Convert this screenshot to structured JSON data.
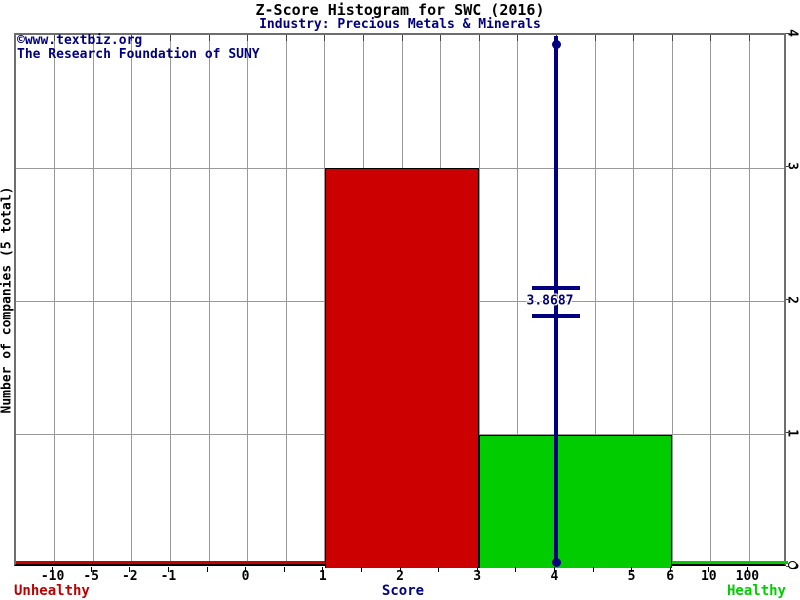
{
  "title": "Z-Score Histogram for SWC (2016)",
  "subtitle": "Industry: Precious Metals & Minerals",
  "watermark": {
    "line1": "©www.textbiz.org",
    "line2": "The Research Foundation of SUNY"
  },
  "y_axis": {
    "label": "Number of companies (5 total)",
    "ticks": [
      "0",
      "1",
      "2",
      "3",
      "4"
    ],
    "max": 4
  },
  "x_axis": {
    "label": "Score",
    "cells": 20,
    "ticks": [
      {
        "label": "-10",
        "i": 1
      },
      {
        "label": "-5",
        "i": 2
      },
      {
        "label": "-2",
        "i": 3
      },
      {
        "label": "-1",
        "i": 4
      },
      {
        "label": "0",
        "i": 6
      },
      {
        "label": "1",
        "i": 8
      },
      {
        "label": "2",
        "i": 10
      },
      {
        "label": "3",
        "i": 12
      },
      {
        "label": "4",
        "i": 14
      },
      {
        "label": "5",
        "i": 16
      },
      {
        "label": "6",
        "i": 17
      },
      {
        "label": "10",
        "i": 18
      },
      {
        "label": "100",
        "i": 19
      }
    ]
  },
  "footer": {
    "left": "Unhealthy",
    "right": "Healthy"
  },
  "colors": {
    "navy": "#000080",
    "bar_red": "#cc0000",
    "bar_green": "#00cc00",
    "unhealthy_text": "#bb0000",
    "healthy_text": "#00cc00",
    "grid": "#999999",
    "border": "#6e6e6e",
    "axis": "#000000"
  },
  "chart_data": {
    "type": "bar",
    "title": "Z-Score Histogram for SWC (2016)",
    "subtitle": "Industry: Precious Metals & Minerals",
    "xlabel": "Score",
    "ylabel": "Number of companies (5 total)",
    "ylim": [
      0,
      4
    ],
    "grid": true,
    "total_companies": 5,
    "x_tick_labels": [
      "-10",
      "-5",
      "-2",
      "-1",
      "0",
      "1",
      "2",
      "3",
      "4",
      "5",
      "6",
      "10",
      "100"
    ],
    "bins": [
      {
        "from": 1,
        "to": 3,
        "count": 3,
        "color": "#cc0000",
        "i_from": 8,
        "i_to": 12
      },
      {
        "from": 3,
        "to": 6,
        "count": 1,
        "color": "#00cc00",
        "i_from": 12,
        "i_to": 17
      }
    ],
    "baseline_segments": [
      {
        "i_from": 0,
        "i_to": 8,
        "color": "#cc0000",
        "zone": "unhealthy"
      },
      {
        "i_from": 17,
        "i_to": 20,
        "color": "#00cc00",
        "zone": "healthy"
      }
    ],
    "marker": {
      "value": "3.8687",
      "score": 3.8687,
      "i": 14,
      "label_y_value": 2,
      "color": "#000080"
    }
  }
}
